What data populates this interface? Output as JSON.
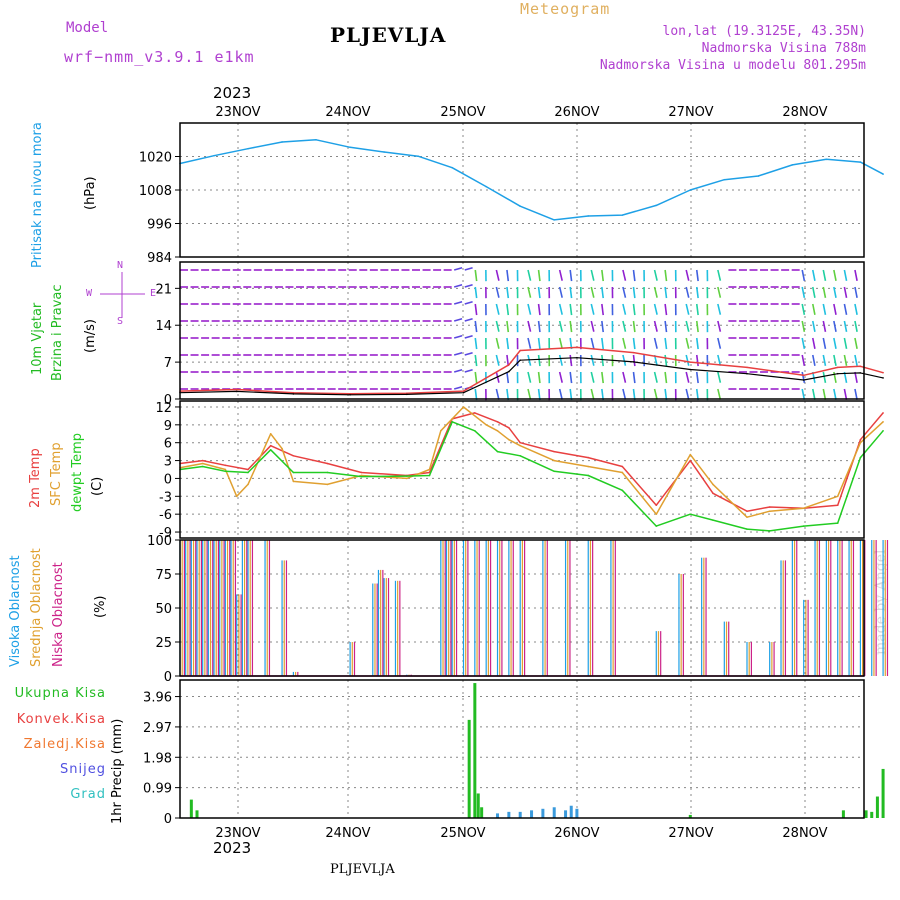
{
  "header": {
    "model_label": "Model",
    "model_name": "wrf−nmm_v3.9.1  e1km",
    "title": "PLJEVLJA",
    "meteogram": "Meteogram",
    "lonlat": "lon,lat (19.3125E, 43.35N)",
    "altitude": "Nadmorska Visina 788m",
    "model_altitude": "Nadmorska Visina u modelu 801.295m",
    "year_top": "2023",
    "year_bottom": "2023",
    "footer": "PLJEVLJA",
    "watermark": "made by Angel"
  },
  "colors": {
    "pressure": "#1ea0e6",
    "wind_title": "#22bb22",
    "temp2m": "#e84040",
    "sfc": "#e0a030",
    "dewpt": "#22cc22",
    "high_cloud": "#1ea0e6",
    "mid_cloud": "#e0a030",
    "low_cloud": "#cc2288",
    "purple": "#b040d0"
  },
  "chart_data": [
    {
      "type": "line",
      "panel": "pressure",
      "ylabel_left": "Pritisak na nivou mora",
      "ylabel_unit": "(hPa)",
      "ylim": [
        984,
        1032
      ],
      "yticks": [
        984,
        996,
        1008,
        1020
      ],
      "grid": true,
      "x_days": [
        0.0,
        0.3,
        0.6,
        0.9,
        1.2,
        1.5,
        1.8,
        2.1,
        2.4,
        2.7,
        3.0,
        3.3,
        3.6,
        3.9,
        4.2,
        4.5,
        4.8,
        5.1,
        5.4,
        5.7,
        6.0,
        6.2
      ],
      "values": [
        1017.5,
        1020.3,
        1022.8,
        1025.2,
        1026.0,
        1023.3,
        1021.6,
        1020.1,
        1016.0,
        1009.2,
        1002.2,
        997.3,
        998.7,
        999.0,
        1002.5,
        1008.0,
        1011.7,
        1013.0,
        1017.0,
        1019.0,
        1018.0,
        1013.7
      ]
    },
    {
      "type": "line",
      "panel": "wind",
      "ylabel_left_1": "10m Vjetar",
      "ylabel_left_2": "Brzina i Pravac",
      "ylabel_unit": "(m/s)",
      "compass": [
        "N",
        "W",
        "E",
        "S"
      ],
      "ylim": [
        0,
        26
      ],
      "yticks": [
        0,
        7,
        14,
        21
      ],
      "grid": true,
      "x_days": [
        0.0,
        0.5,
        1.0,
        1.5,
        2.0,
        2.5,
        2.9,
        3.0,
        3.5,
        4.0,
        4.5,
        5.0,
        5.5,
        5.8,
        6.0,
        6.2
      ],
      "values": [
        1.5,
        1.8,
        1.2,
        1.0,
        1.1,
        1.5,
        6.5,
        9.2,
        9.8,
        8.8,
        7.0,
        6.0,
        4.5,
        6.0,
        6.2,
        5.0
      ]
    },
    {
      "type": "line",
      "panel": "temperature",
      "ylabel_left_1": "2m Temp",
      "ylabel_left_2": "SFC Temp",
      "ylabel_left_3": "dewpt Temp",
      "ylabel_unit": "(C)",
      "ylim": [
        -10,
        13
      ],
      "yticks": [
        -9,
        -6,
        -3,
        0,
        3,
        6,
        9,
        12
      ],
      "grid": true,
      "series": [
        {
          "name": "2m Temp",
          "x_days": [
            0.0,
            0.2,
            0.4,
            0.6,
            0.8,
            1.0,
            1.3,
            1.6,
            2.0,
            2.2,
            2.4,
            2.6,
            2.8,
            2.9,
            3.0,
            3.3,
            3.6,
            3.9,
            4.2,
            4.5,
            4.7,
            5.0,
            5.2,
            5.5,
            5.8,
            6.0,
            6.2
          ],
          "values": [
            2.5,
            3.0,
            2.2,
            1.5,
            5.5,
            3.8,
            2.5,
            1.0,
            0.5,
            1.0,
            10.0,
            11.0,
            9.5,
            8.5,
            6.0,
            4.5,
            3.5,
            2.0,
            -4.5,
            3.0,
            -2.5,
            -5.5,
            -4.8,
            -5.0,
            -4.5,
            6.5,
            11.0
          ]
        },
        {
          "name": "SFC Temp",
          "x_days": [
            0.0,
            0.2,
            0.4,
            0.5,
            0.6,
            0.8,
            0.9,
            1.0,
            1.3,
            1.6,
            2.0,
            2.2,
            2.3,
            2.5,
            2.7,
            2.8,
            2.9,
            3.0,
            3.3,
            3.6,
            3.9,
            4.2,
            4.5,
            4.7,
            5.0,
            5.2,
            5.5,
            5.8,
            6.0,
            6.2
          ],
          "values": [
            1.8,
            2.5,
            1.5,
            -3.0,
            -1.0,
            7.5,
            5.0,
            -0.5,
            -1.0,
            0.5,
            0.0,
            1.5,
            8.0,
            12.0,
            9.0,
            8.0,
            6.5,
            5.5,
            3.0,
            2.0,
            1.0,
            -6.0,
            4.0,
            -1.0,
            -6.5,
            -5.5,
            -5.0,
            -3.0,
            6.0,
            9.5
          ]
        },
        {
          "name": "dewpt Temp",
          "x_days": [
            0.0,
            0.2,
            0.4,
            0.6,
            0.8,
            1.0,
            1.3,
            1.6,
            2.0,
            2.2,
            2.4,
            2.6,
            2.8,
            3.0,
            3.3,
            3.6,
            3.9,
            4.2,
            4.5,
            4.7,
            5.0,
            5.2,
            5.5,
            5.8,
            6.0,
            6.2
          ],
          "values": [
            1.5,
            2.0,
            1.2,
            1.0,
            4.8,
            1.0,
            1.0,
            0.3,
            0.4,
            0.5,
            9.5,
            8.0,
            4.5,
            3.8,
            1.2,
            0.5,
            -2.0,
            -8.0,
            -6.0,
            -7.0,
            -8.5,
            -8.8,
            -8.0,
            -7.5,
            3.5,
            8.0
          ]
        }
      ]
    },
    {
      "type": "bar",
      "panel": "clouds",
      "ylabel_left_1": "Visoka Oblacnost",
      "ylabel_left_2": "Srednja Oblacnost",
      "ylabel_left_3": "Niska Oblacnost",
      "ylabel_unit": "(%)",
      "ylim": [
        0,
        100
      ],
      "yticks": [
        0,
        25,
        50,
        75,
        100
      ],
      "grid": true,
      "x_days": [
        0.0,
        0.05,
        0.1,
        0.15,
        0.2,
        0.25,
        0.3,
        0.35,
        0.4,
        0.45,
        0.5,
        0.55,
        0.6,
        0.75,
        0.9,
        1.0,
        1.5,
        1.55,
        1.7,
        1.75,
        1.8,
        1.9,
        2.0,
        2.05,
        2.1,
        2.3,
        2.35,
        2.4,
        2.5,
        2.6,
        2.7,
        2.8,
        2.9,
        3.0,
        3.2,
        3.4,
        3.6,
        3.8,
        4.0,
        4.2,
        4.4,
        4.6,
        4.8,
        5.0,
        5.2,
        5.3,
        5.4,
        5.5,
        5.6,
        5.7,
        5.8,
        5.9,
        6.0,
        6.1,
        6.2
      ],
      "values": [
        100,
        100,
        100,
        100,
        100,
        100,
        100,
        100,
        100,
        100,
        60,
        100,
        100,
        100,
        85,
        3,
        25,
        0,
        68,
        78,
        72,
        70,
        1,
        0,
        0,
        100,
        100,
        100,
        100,
        100,
        100,
        100,
        100,
        100,
        100,
        100,
        100,
        100,
        0,
        33,
        75,
        87,
        40,
        25,
        25,
        85,
        100,
        56,
        100,
        100,
        100,
        100,
        100,
        100,
        100
      ]
    },
    {
      "type": "bar",
      "panel": "precipitation",
      "legend": [
        "Ukupna Kisa",
        "Konvek.Kisa",
        "Zaledj.Kisa",
        "Snijeg",
        "Grad"
      ],
      "ylabel_unit": "1hr Precip (mm)",
      "ylim": [
        0,
        4.5
      ],
      "yticks": [
        "0",
        "0.99",
        "1.98",
        "2.97",
        "3.96"
      ],
      "grid": true,
      "x_days": [
        0.1,
        0.15,
        2.55,
        2.6,
        2.63,
        2.66,
        2.8,
        2.9,
        3.0,
        3.1,
        3.2,
        3.3,
        3.4,
        3.45,
        3.5,
        4.5,
        5.85,
        6.05,
        6.1,
        6.15,
        6.2
      ],
      "values": [
        0.6,
        0.25,
        3.2,
        4.4,
        0.8,
        0.35,
        0.15,
        0.2,
        0.2,
        0.25,
        0.3,
        0.35,
        0.25,
        0.4,
        0.3,
        0.1,
        0.25,
        0.25,
        0.2,
        0.7,
        1.6
      ]
    }
  ],
  "x_axis": {
    "day_labels": [
      "23NOV",
      "24NOV",
      "25NOV",
      "26NOV",
      "27NOV",
      "28NOV"
    ]
  }
}
